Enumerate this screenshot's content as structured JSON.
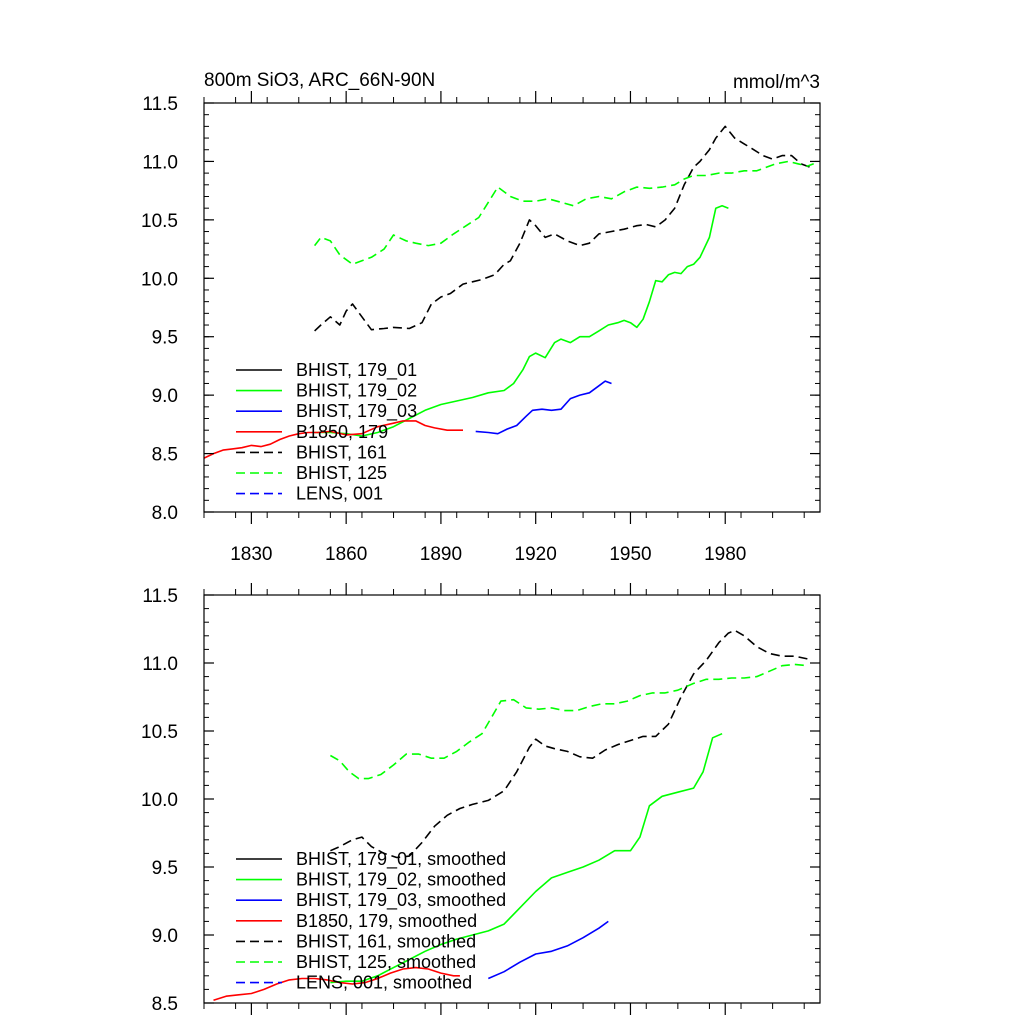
{
  "top_title": "800m SiO3, ARC_66N-90N",
  "top_units": "mmol/m^3",
  "chart_data": [
    {
      "type": "line",
      "title": "800m SiO3, ARC_66N-90N",
      "units": "mmol/m^3",
      "xlim": [
        1815,
        2010
      ],
      "ylim": [
        8.0,
        11.5
      ],
      "xticks": [
        1830,
        1860,
        1890,
        1920,
        1950,
        1980
      ],
      "yticks": [
        8.0,
        8.5,
        9.0,
        9.5,
        10.0,
        10.5,
        11.0,
        11.5
      ],
      "ytick_labels": [
        "8.0",
        "8.5",
        "9.0",
        "9.5",
        "10.0",
        "10.5",
        "11.0",
        "11.5"
      ],
      "legend_position": "lower-left",
      "series": [
        {
          "name": "BHIST, 179_01",
          "color": "#000000",
          "dash": "solid",
          "x": [],
          "y": []
        },
        {
          "name": "BHIST, 179_02",
          "color": "#00ff00",
          "dash": "solid",
          "x": [
            1850,
            1855,
            1860,
            1865,
            1870,
            1875,
            1880,
            1885,
            1890,
            1895,
            1900,
            1905,
            1910,
            1913,
            1916,
            1918,
            1920,
            1923,
            1926,
            1928,
            1931,
            1934,
            1937,
            1940,
            1943,
            1946,
            1948,
            1950,
            1952,
            1954,
            1956,
            1958,
            1960,
            1962,
            1964,
            1966,
            1968,
            1970,
            1972,
            1975,
            1977,
            1979,
            1981
          ],
          "y": [
            8.68,
            8.68,
            8.67,
            8.65,
            8.68,
            8.73,
            8.8,
            8.87,
            8.92,
            8.95,
            8.98,
            9.02,
            9.04,
            9.1,
            9.22,
            9.33,
            9.36,
            9.32,
            9.45,
            9.48,
            9.45,
            9.5,
            9.5,
            9.55,
            9.6,
            9.62,
            9.64,
            9.62,
            9.58,
            9.65,
            9.8,
            9.98,
            9.97,
            10.03,
            10.05,
            10.04,
            10.1,
            10.12,
            10.18,
            10.35,
            10.6,
            10.62,
            10.6
          ]
        },
        {
          "name": "BHIST, 179_03",
          "color": "#0000ff",
          "dash": "solid",
          "x": [
            1901,
            1905,
            1908,
            1911,
            1914,
            1917,
            1919,
            1922,
            1925,
            1928,
            1931,
            1934,
            1937,
            1940,
            1942,
            1944
          ],
          "y": [
            8.69,
            8.68,
            8.67,
            8.71,
            8.74,
            8.82,
            8.87,
            8.88,
            8.87,
            8.88,
            8.97,
            9.0,
            9.02,
            9.08,
            9.12,
            9.1
          ]
        },
        {
          "name": "B1850, 179",
          "color": "#ff0000",
          "dash": "solid",
          "x": [
            1815,
            1818,
            1821,
            1824,
            1827,
            1830,
            1833,
            1836,
            1839,
            1842,
            1845,
            1848,
            1851,
            1855,
            1860,
            1865,
            1870,
            1875,
            1878,
            1882,
            1885,
            1888,
            1892,
            1895,
            1897
          ],
          "y": [
            8.46,
            8.5,
            8.53,
            8.54,
            8.55,
            8.57,
            8.56,
            8.58,
            8.62,
            8.65,
            8.67,
            8.68,
            8.68,
            8.69,
            8.66,
            8.67,
            8.73,
            8.76,
            8.78,
            8.78,
            8.74,
            8.72,
            8.7,
            8.7,
            8.7
          ]
        },
        {
          "name": "BHIST, 161",
          "color": "#000000",
          "dash": "dashed",
          "x": [
            1850,
            1852,
            1855,
            1858,
            1860,
            1862,
            1865,
            1868,
            1872,
            1875,
            1880,
            1884,
            1887,
            1890,
            1893,
            1897,
            1900,
            1903,
            1907,
            1910,
            1912,
            1915,
            1918,
            1920,
            1923,
            1926,
            1930,
            1934,
            1937,
            1940,
            1944,
            1948,
            1952,
            1955,
            1958,
            1961,
            1964,
            1967,
            1970,
            1972,
            1975,
            1977,
            1980,
            1983,
            1986,
            1989,
            1992,
            1995,
            1998,
            2001,
            2004,
            2007
          ],
          "y": [
            9.55,
            9.6,
            9.67,
            9.6,
            9.72,
            9.78,
            9.67,
            9.56,
            9.57,
            9.58,
            9.57,
            9.62,
            9.78,
            9.84,
            9.87,
            9.95,
            9.97,
            9.99,
            10.03,
            10.12,
            10.15,
            10.3,
            10.5,
            10.45,
            10.35,
            10.38,
            10.32,
            10.28,
            10.3,
            10.38,
            10.4,
            10.42,
            10.45,
            10.46,
            10.44,
            10.5,
            10.6,
            10.8,
            10.95,
            11.0,
            11.1,
            11.2,
            11.3,
            11.2,
            11.15,
            11.1,
            11.05,
            11.02,
            11.05,
            11.05,
            10.98,
            10.95
          ]
        },
        {
          "name": "BHIST, 125",
          "color": "#00ff00",
          "dash": "dashed",
          "x": [
            1850,
            1852,
            1855,
            1858,
            1862,
            1865,
            1868,
            1872,
            1875,
            1879,
            1882,
            1886,
            1890,
            1894,
            1898,
            1902,
            1905,
            1908,
            1912,
            1916,
            1920,
            1924,
            1928,
            1932,
            1936,
            1940,
            1944,
            1948,
            1952,
            1956,
            1960,
            1964,
            1967,
            1970,
            1974,
            1978,
            1982,
            1986,
            1990,
            1993,
            1996,
            2000,
            2003,
            2006,
            2008
          ],
          "y": [
            10.28,
            10.35,
            10.32,
            10.2,
            10.12,
            10.15,
            10.18,
            10.25,
            10.37,
            10.32,
            10.3,
            10.28,
            10.3,
            10.38,
            10.45,
            10.52,
            10.65,
            10.78,
            10.7,
            10.66,
            10.66,
            10.68,
            10.65,
            10.62,
            10.68,
            10.7,
            10.68,
            10.74,
            10.78,
            10.77,
            10.78,
            10.8,
            10.85,
            10.88,
            10.88,
            10.9,
            10.9,
            10.92,
            10.92,
            10.95,
            10.98,
            11.0,
            10.98,
            10.96,
            10.98
          ]
        },
        {
          "name": "LENS, 001",
          "color": "#0000ff",
          "dash": "dashed",
          "x": [],
          "y": []
        }
      ]
    },
    {
      "type": "line",
      "xlim": [
        1815,
        2010
      ],
      "ylim": [
        8.5,
        11.5
      ],
      "xticks": [
        1830,
        1860,
        1890,
        1920,
        1950,
        1980
      ],
      "yticks": [
        8.5,
        9.0,
        9.5,
        10.0,
        10.5,
        11.0,
        11.5
      ],
      "ytick_labels": [
        "8.5",
        "9.0",
        "9.5",
        "10.0",
        "10.5",
        "11.0",
        "11.5"
      ],
      "legend_position": "lower-left",
      "series": [
        {
          "name": "BHIST, 179_01, smoothed",
          "color": "#000000",
          "dash": "solid",
          "x": [],
          "y": []
        },
        {
          "name": "BHIST, 179_02, smoothed",
          "color": "#00ff00",
          "dash": "solid",
          "x": [
            1855,
            1860,
            1865,
            1870,
            1875,
            1880,
            1885,
            1890,
            1895,
            1900,
            1905,
            1910,
            1915,
            1920,
            1925,
            1930,
            1935,
            1940,
            1945,
            1950,
            1953,
            1956,
            1960,
            1965,
            1970,
            1973,
            1976,
            1979
          ],
          "y": [
            8.65,
            8.66,
            8.66,
            8.7,
            8.76,
            8.82,
            8.88,
            8.93,
            8.97,
            9.0,
            9.03,
            9.08,
            9.2,
            9.32,
            9.42,
            9.46,
            9.5,
            9.55,
            9.62,
            9.62,
            9.72,
            9.95,
            10.02,
            10.05,
            10.08,
            10.2,
            10.45,
            10.48
          ]
        },
        {
          "name": "BHIST, 179_03, smoothed",
          "color": "#0000ff",
          "dash": "solid",
          "x": [
            1905,
            1910,
            1915,
            1920,
            1925,
            1930,
            1935,
            1940,
            1943
          ],
          "y": [
            8.68,
            8.73,
            8.8,
            8.86,
            8.88,
            8.92,
            8.98,
            9.05,
            9.1
          ]
        },
        {
          "name": "B1850, 179, smoothed",
          "color": "#ff0000",
          "dash": "solid",
          "x": [
            1818,
            1822,
            1826,
            1830,
            1834,
            1838,
            1842,
            1846,
            1850,
            1854,
            1858,
            1862,
            1866,
            1870,
            1874,
            1878,
            1882,
            1886,
            1890,
            1894,
            1896
          ],
          "y": [
            8.52,
            8.55,
            8.56,
            8.57,
            8.6,
            8.64,
            8.67,
            8.68,
            8.68,
            8.67,
            8.65,
            8.64,
            8.65,
            8.68,
            8.72,
            8.75,
            8.76,
            8.75,
            8.72,
            8.7,
            8.7
          ]
        },
        {
          "name": "BHIST, 161, smoothed",
          "color": "#000000",
          "dash": "dashed",
          "x": [
            1855,
            1858,
            1862,
            1865,
            1868,
            1872,
            1876,
            1880,
            1884,
            1888,
            1892,
            1896,
            1900,
            1905,
            1910,
            1914,
            1918,
            1920,
            1923,
            1926,
            1930,
            1934,
            1938,
            1942,
            1946,
            1950,
            1954,
            1958,
            1962,
            1966,
            1970,
            1974,
            1978,
            1981,
            1983,
            1986,
            1990,
            1994,
            1998,
            2002,
            2006
          ],
          "y": [
            9.62,
            9.65,
            9.7,
            9.72,
            9.65,
            9.6,
            9.57,
            9.58,
            9.68,
            9.8,
            9.88,
            9.93,
            9.96,
            9.99,
            10.06,
            10.2,
            10.38,
            10.44,
            10.39,
            10.37,
            10.35,
            10.31,
            10.3,
            10.36,
            10.4,
            10.43,
            10.46,
            10.46,
            10.55,
            10.75,
            10.92,
            11.02,
            11.15,
            11.22,
            11.24,
            11.2,
            11.12,
            11.07,
            11.05,
            11.05,
            11.03
          ]
        },
        {
          "name": "BHIST, 125, smoothed",
          "color": "#00ff00",
          "dash": "dashed",
          "x": [
            1855,
            1858,
            1861,
            1864,
            1867,
            1871,
            1875,
            1879,
            1883,
            1887,
            1891,
            1895,
            1899,
            1903,
            1906,
            1909,
            1913,
            1917,
            1921,
            1925,
            1929,
            1933,
            1937,
            1941,
            1945,
            1949,
            1953,
            1957,
            1961,
            1965,
            1970,
            1974,
            1978,
            1982,
            1986,
            1990,
            1994,
            1998,
            2002,
            2006
          ],
          "y": [
            10.32,
            10.28,
            10.2,
            10.15,
            10.15,
            10.18,
            10.25,
            10.33,
            10.33,
            10.3,
            10.3,
            10.35,
            10.42,
            10.48,
            10.6,
            10.72,
            10.73,
            10.67,
            10.66,
            10.67,
            10.65,
            10.65,
            10.68,
            10.7,
            10.7,
            10.72,
            10.76,
            10.78,
            10.78,
            10.8,
            10.85,
            10.88,
            10.88,
            10.89,
            10.89,
            10.9,
            10.94,
            10.98,
            10.99,
            10.98
          ]
        },
        {
          "name": "LENS, 001, smoothed",
          "color": "#0000ff",
          "dash": "dashed",
          "x": [],
          "y": []
        }
      ]
    }
  ]
}
